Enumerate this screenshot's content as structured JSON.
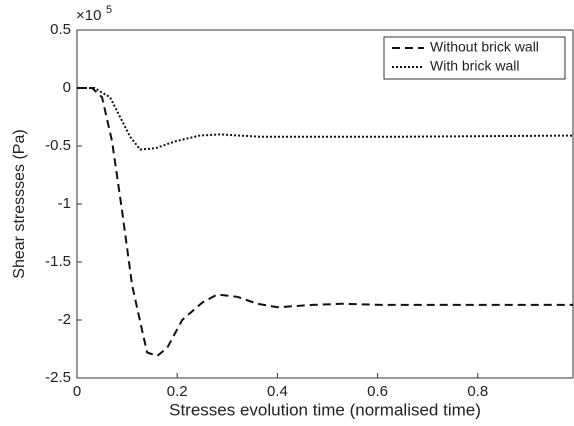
{
  "chart_data": {
    "type": "line",
    "x_label": "Stresses evolution time (normalised time)",
    "y_label": "Shear stressses (Pa)",
    "y_scale_label": "×10",
    "y_scale_exponent": "5",
    "xlim": [
      0,
      0.99
    ],
    "xticks": [
      0,
      0.2,
      0.4,
      0.6,
      0.8
    ],
    "ylim": [
      -2.5,
      0.5
    ],
    "yticks": [
      0.5,
      0,
      -0.5,
      -1,
      -1.5,
      -2,
      -2.5
    ],
    "legend": "top-right",
    "series": [
      {
        "name": "Without brick wall",
        "color": "#111111",
        "style": "dashed",
        "x": [
          0,
          0.03,
          0.05,
          0.07,
          0.09,
          0.11,
          0.13,
          0.14,
          0.16,
          0.18,
          0.21,
          0.25,
          0.28,
          0.32,
          0.36,
          0.4,
          0.47,
          0.53,
          0.61,
          0.74,
          0.99
        ],
        "values": [
          0,
          0,
          -0.08,
          -0.46,
          -1.06,
          -1.7,
          -2.09,
          -2.28,
          -2.31,
          -2.24,
          -2.0,
          -1.85,
          -1.78,
          -1.8,
          -1.86,
          -1.89,
          -1.87,
          -1.86,
          -1.87,
          -1.87,
          -1.87
        ]
      },
      {
        "name": "With brick wall",
        "color": "#111111",
        "style": "dotted",
        "x": [
          0,
          0.035,
          0.066,
          0.086,
          0.106,
          0.126,
          0.156,
          0.196,
          0.245,
          0.285,
          0.365,
          0.445,
          0.644,
          0.99
        ],
        "values": [
          0,
          0,
          -0.08,
          -0.25,
          -0.42,
          -0.53,
          -0.52,
          -0.46,
          -0.41,
          -0.4,
          -0.42,
          -0.42,
          -0.42,
          -0.41
        ]
      }
    ]
  }
}
